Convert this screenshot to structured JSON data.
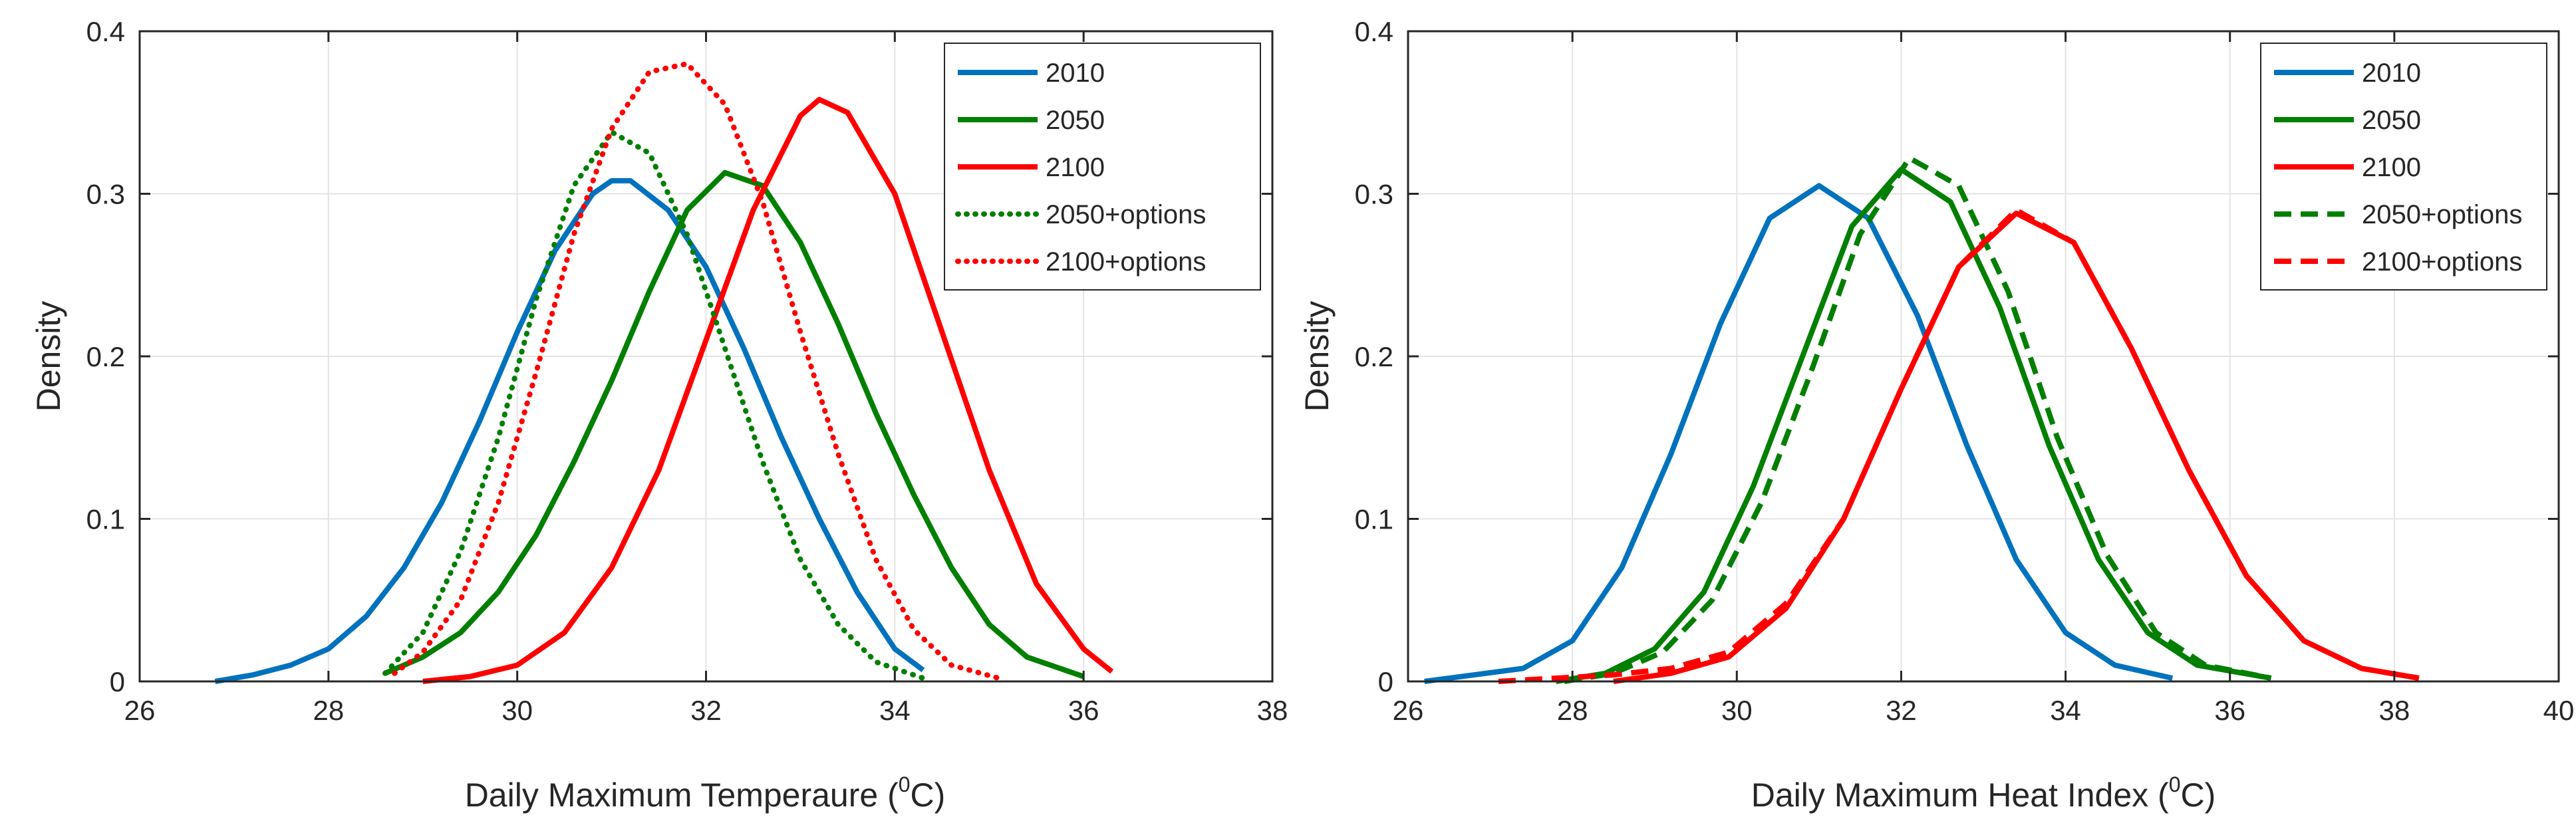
{
  "chart_data": [
    {
      "type": "line",
      "title": "",
      "xlabel": "Daily Maximum Temperaure (",
      "xlabel_sup": "0",
      "xlabel_unit": "C)",
      "ylabel": "Density",
      "xlim": [
        26,
        38
      ],
      "ylim": [
        0,
        0.4
      ],
      "xticks": [
        "26",
        "28",
        "30",
        "32",
        "34",
        "36",
        "38"
      ],
      "yticks": [
        "0",
        "0.1",
        "0.2",
        "0.3",
        "0.4"
      ],
      "grid": true,
      "legend_position": "top-right",
      "series": [
        {
          "name": "2010",
          "color": "#0072BD",
          "style": "solid",
          "x": [
            26.8,
            27.2,
            27.6,
            28.0,
            28.4,
            28.8,
            29.2,
            29.6,
            30.0,
            30.4,
            30.8,
            31.0,
            31.2,
            31.6,
            32.0,
            32.4,
            32.8,
            33.2,
            33.6,
            34.0,
            34.3
          ],
          "y": [
            0.0,
            0.004,
            0.01,
            0.02,
            0.04,
            0.07,
            0.11,
            0.16,
            0.215,
            0.265,
            0.3,
            0.308,
            0.308,
            0.29,
            0.255,
            0.205,
            0.15,
            0.1,
            0.055,
            0.02,
            0.007
          ]
        },
        {
          "name": "2050",
          "color": "#007F00",
          "style": "solid",
          "x": [
            28.6,
            29.0,
            29.4,
            29.8,
            30.2,
            30.6,
            31.0,
            31.4,
            31.8,
            32.2,
            32.6,
            33.0,
            33.4,
            33.8,
            34.2,
            34.6,
            35.0,
            35.4,
            36.0
          ],
          "y": [
            0.005,
            0.015,
            0.03,
            0.055,
            0.09,
            0.135,
            0.185,
            0.24,
            0.29,
            0.313,
            0.305,
            0.27,
            0.22,
            0.165,
            0.115,
            0.07,
            0.035,
            0.015,
            0.003
          ]
        },
        {
          "name": "2100",
          "color": "#FF0000",
          "style": "solid",
          "x": [
            29.0,
            29.5,
            30.0,
            30.5,
            31.0,
            31.5,
            32.0,
            32.5,
            33.0,
            33.2,
            33.5,
            34.0,
            34.5,
            35.0,
            35.5,
            36.0,
            36.3
          ],
          "y": [
            0.0,
            0.003,
            0.01,
            0.03,
            0.07,
            0.13,
            0.21,
            0.29,
            0.348,
            0.358,
            0.35,
            0.3,
            0.215,
            0.13,
            0.06,
            0.02,
            0.006
          ]
        },
        {
          "name": "2050+options",
          "color": "#007F00",
          "style": "dotted",
          "x": [
            28.6,
            29.0,
            29.4,
            29.8,
            30.2,
            30.6,
            31.0,
            31.4,
            31.8,
            32.2,
            32.6,
            33.0,
            33.4,
            33.8,
            34.3
          ],
          "y": [
            0.005,
            0.03,
            0.08,
            0.15,
            0.235,
            0.305,
            0.338,
            0.325,
            0.275,
            0.205,
            0.135,
            0.075,
            0.035,
            0.012,
            0.002
          ]
        },
        {
          "name": "2100+options",
          "color": "#FF0000",
          "style": "dotted",
          "x": [
            28.7,
            29.0,
            29.4,
            29.8,
            30.2,
            30.6,
            31.0,
            31.4,
            31.8,
            32.2,
            32.6,
            33.0,
            33.4,
            33.8,
            34.2,
            34.6,
            35.1
          ],
          "y": [
            0.005,
            0.018,
            0.05,
            0.11,
            0.19,
            0.275,
            0.34,
            0.375,
            0.38,
            0.355,
            0.295,
            0.215,
            0.14,
            0.075,
            0.032,
            0.01,
            0.002
          ]
        }
      ]
    },
    {
      "type": "line",
      "title": "",
      "xlabel": "Daily Maximum Heat Index (",
      "xlabel_sup": "0",
      "xlabel_unit": "C)",
      "ylabel": "Density",
      "xlim": [
        26,
        40
      ],
      "ylim": [
        0,
        0.4
      ],
      "xticks": [
        "26",
        "28",
        "30",
        "32",
        "34",
        "36",
        "38",
        "40"
      ],
      "yticks": [
        "0",
        "0.1",
        "0.2",
        "0.3",
        "0.4"
      ],
      "grid": true,
      "legend_position": "top-right",
      "series": [
        {
          "name": "2010",
          "color": "#0072BD",
          "style": "solid",
          "x": [
            26.2,
            26.8,
            27.4,
            28.0,
            28.6,
            29.2,
            29.8,
            30.4,
            31.0,
            31.6,
            32.2,
            32.8,
            33.4,
            34.0,
            34.6,
            35.3
          ],
          "y": [
            0.0,
            0.004,
            0.008,
            0.025,
            0.07,
            0.14,
            0.22,
            0.285,
            0.305,
            0.285,
            0.225,
            0.145,
            0.075,
            0.03,
            0.01,
            0.002
          ]
        },
        {
          "name": "2050",
          "color": "#007F00",
          "style": "solid",
          "x": [
            27.8,
            28.4,
            29.0,
            29.6,
            30.2,
            30.8,
            31.4,
            32.0,
            32.6,
            33.2,
            33.8,
            34.4,
            35.0,
            35.6,
            36.5
          ],
          "y": [
            0.0,
            0.005,
            0.02,
            0.055,
            0.12,
            0.2,
            0.28,
            0.315,
            0.295,
            0.23,
            0.145,
            0.075,
            0.03,
            0.01,
            0.002
          ]
        },
        {
          "name": "2100",
          "color": "#FF0000",
          "style": "solid",
          "x": [
            28.5,
            29.2,
            29.9,
            30.6,
            31.3,
            32.0,
            32.7,
            33.4,
            34.1,
            34.8,
            35.5,
            36.2,
            36.9,
            37.6,
            38.3
          ],
          "y": [
            0.0,
            0.005,
            0.015,
            0.045,
            0.1,
            0.18,
            0.255,
            0.288,
            0.27,
            0.205,
            0.13,
            0.065,
            0.025,
            0.008,
            0.002
          ]
        },
        {
          "name": "2050+options",
          "color": "#007F00",
          "style": "dashed",
          "x": [
            27.9,
            28.5,
            29.1,
            29.7,
            30.3,
            30.9,
            31.5,
            32.1,
            32.7,
            33.3,
            33.9,
            34.5,
            35.1,
            35.7,
            36.5
          ],
          "y": [
            0.0,
            0.005,
            0.018,
            0.05,
            0.11,
            0.19,
            0.275,
            0.322,
            0.305,
            0.24,
            0.15,
            0.078,
            0.03,
            0.01,
            0.002
          ]
        },
        {
          "name": "2100+options",
          "color": "#FF0000",
          "style": "dashed",
          "x": [
            27.1,
            27.8,
            28.5,
            29.2,
            29.9,
            30.6,
            31.3,
            32.0,
            32.7,
            33.4,
            34.1,
            34.8,
            35.5,
            36.2,
            36.9,
            37.6,
            38.3
          ],
          "y": [
            0.0,
            0.002,
            0.004,
            0.008,
            0.018,
            0.048,
            0.1,
            0.18,
            0.255,
            0.29,
            0.27,
            0.205,
            0.13,
            0.065,
            0.025,
            0.008,
            0.002
          ]
        }
      ]
    }
  ]
}
